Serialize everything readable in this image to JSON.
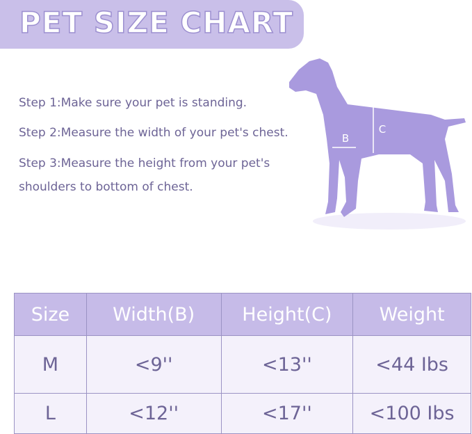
{
  "header": {
    "title": "PET SIZE CHART"
  },
  "steps": [
    "Step 1:Make sure your pet is standing.",
    "Step 2:Measure the width of your pet's chest.",
    "Step 3:Measure the height from your pet's shoulders to bottom of chest."
  ],
  "diagram": {
    "labels": [
      "B",
      "C"
    ]
  },
  "table": {
    "columns": [
      "Size",
      "Width(B)",
      "Height(C)",
      "Weight"
    ],
    "rows": [
      [
        "M",
        "<9''",
        "<13''",
        "<44 Ibs"
      ],
      [
        "L",
        "<12''",
        "<17''",
        "<100 Ibs"
      ]
    ]
  }
}
